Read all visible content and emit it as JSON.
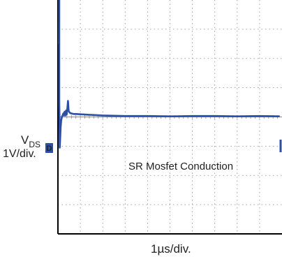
{
  "chart_data": {
    "type": "line",
    "channel_label": "V",
    "channel_label_sub": "DS",
    "vertical_scale": "1V/div.",
    "horizontal_scale": "1µs/div.",
    "annotation": "SR Mosfet Conduction",
    "channel_marker": "D",
    "grid": true,
    "divisions": {
      "x": 10,
      "y": 8
    },
    "xlim": [
      0,
      10
    ],
    "ylim": [
      -4,
      4
    ],
    "series": [
      {
        "color": "#2b4fa3",
        "x": [
          0.05,
          0.06,
          0.06,
          0.07,
          0.08,
          0.1,
          0.12,
          0.15,
          0.18,
          0.21,
          0.24,
          0.27,
          0.3,
          0.33,
          0.36,
          0.39,
          0.42,
          0.45,
          0.48,
          0.52,
          0.56,
          0.6,
          0.65,
          0.7,
          0.8,
          1.0,
          1.5,
          2.0,
          3.0,
          4.0,
          5.0,
          6.0,
          7.0,
          8.0,
          9.0,
          9.9
        ],
        "y": [
          2.5,
          4.0,
          0.5,
          0.1,
          -1.05,
          -0.75,
          -0.35,
          -0.1,
          0.02,
          0.05,
          0.12,
          0.05,
          0.18,
          0.05,
          0.22,
          0.08,
          0.3,
          0.55,
          0.2,
          0.15,
          0.13,
          0.12,
          0.11,
          0.1,
          0.1,
          0.09,
          0.07,
          0.05,
          0.03,
          0.03,
          0.02,
          0.03,
          0.03,
          0.02,
          0.03,
          0.02
        ]
      }
    ]
  }
}
